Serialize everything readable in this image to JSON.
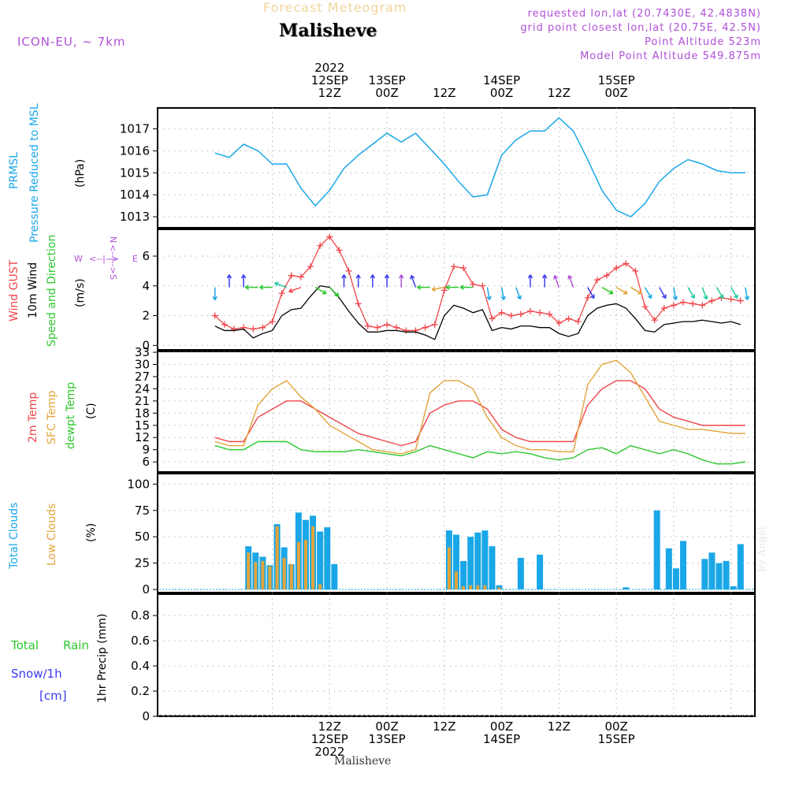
{
  "header": {
    "subtitle": "Forecast Meteogram",
    "title": "Malisheve",
    "model": "ICON-EU, ~ 7km",
    "requested": "requested lon,lat (20.7430E, 42.4838N)",
    "gridpoint": "grid point closest lon,lat (20.75E, 42.5N)",
    "point_alt": "Point Altitude 523m",
    "model_alt": "Model Point Altitude 549.875m"
  },
  "top_time_labels": [
    {
      "l1": "2022",
      "l2": "12SEP",
      "l3": "12Z"
    },
    {
      "l1": "",
      "l2": "13SEP",
      "l3": "00Z"
    },
    {
      "l1": "",
      "l2": "",
      "l3": "12Z"
    },
    {
      "l1": "",
      "l2": "14SEP",
      "l3": "00Z"
    },
    {
      "l1": "",
      "l2": "",
      "l3": "12Z"
    },
    {
      "l1": "",
      "l2": "15SEP",
      "l3": "00Z"
    }
  ],
  "bottom_time_labels": [
    {
      "l1": "12Z",
      "l2": "12SEP",
      "l3": "2022"
    },
    {
      "l1": "00Z",
      "l2": "13SEP",
      "l3": ""
    },
    {
      "l1": "12Z",
      "l2": "",
      "l3": ""
    },
    {
      "l1": "00Z",
      "l2": "14SEP",
      "l3": ""
    },
    {
      "l1": "12Z",
      "l2": "",
      "l3": ""
    },
    {
      "l1": "00Z",
      "l2": "15SEP",
      "l3": ""
    }
  ],
  "footer": "Malisheve",
  "signature": "by Angel",
  "colors": {
    "pressure": "#1aa7e8",
    "gust": "#f0454a",
    "wind": "#000000",
    "temp2m": "#f0454a",
    "sfc": "#e2a43a",
    "dewpt": "#2ec82e",
    "total_clouds": "#1aa7e8",
    "low_clouds": "#e2a43a",
    "rain": "#2ec82e",
    "snow": "#3b3bf0",
    "purple": "#b04fd8"
  },
  "chart_data": [
    {
      "type": "line",
      "panel": "pressure",
      "label_main": "PRMSL",
      "label_sub": "Pressure Reduced to MSL",
      "ylabel": "(hPa)",
      "yticks": [
        1013,
        1014,
        1015,
        1016,
        1017
      ],
      "ylim": [
        1012.5,
        1017.95
      ],
      "x_hours": [
        0,
        3,
        6,
        9,
        12,
        15,
        18,
        21,
        24,
        27,
        30,
        33,
        36,
        39,
        42,
        45,
        48,
        51,
        54,
        57,
        60,
        63,
        66,
        69,
        72,
        75
      ],
      "series": [
        {
          "values": [
            1015.9,
            1015.7,
            1016.3,
            1016.0,
            1015.4,
            1015.4,
            1014.3,
            1013.5,
            1014.2,
            1015.2,
            1015.8,
            1016.3,
            1016.8,
            1016.4,
            1016.8,
            1016.1,
            1015.4,
            1014.6,
            1013.9,
            1014.0,
            1015.8,
            1016.5,
            1016.9,
            1016.9,
            1017.5,
            1016.9
          ]
        }
      ],
      "x_hours_2": [
        75,
        78,
        81,
        84,
        87,
        90,
        93,
        96,
        99,
        102,
        105,
        108,
        111
      ],
      "series_2": [
        {
          "values": [
            1016.9,
            1015.6,
            1014.2,
            1013.3,
            1013.0,
            1013.6,
            1014.6,
            1015.2,
            1015.6,
            1015.4,
            1015.1,
            1015.0,
            1015.0
          ]
        }
      ]
    },
    {
      "type": "line",
      "panel": "wind",
      "label_gust": "Wind GUST",
      "label_wind": "10m Wind",
      "label_dir": "Speed and Direction",
      "ylabel": "(m/s)",
      "compass": {
        "w": "W",
        "e": "E",
        "n": "N",
        "s": "S"
      },
      "yticks": [
        0,
        2,
        4,
        6
      ],
      "ylim": [
        -0.3,
        7.8
      ],
      "x_hours": [
        0,
        2,
        4,
        6,
        8,
        10,
        12,
        14,
        16,
        18,
        20,
        22,
        24,
        26,
        28,
        30,
        32,
        34,
        36,
        38,
        40,
        42,
        44,
        46,
        48,
        50,
        52,
        54,
        56,
        58,
        60,
        62,
        64,
        66,
        68,
        70,
        72,
        74,
        76,
        78,
        80,
        82,
        84,
        86,
        88,
        90,
        92,
        94,
        96,
        98,
        100,
        102,
        104,
        106,
        108,
        110
      ],
      "series": [
        {
          "name": "Wind GUST",
          "values": [
            2.0,
            1.4,
            1.1,
            1.2,
            1.1,
            1.2,
            1.6,
            3.5,
            4.7,
            4.6,
            5.3,
            6.7,
            7.3,
            6.4,
            5.0,
            2.8,
            1.3,
            1.2,
            1.4,
            1.2,
            1.0,
            1.0,
            1.2,
            1.4,
            3.7,
            5.3,
            5.2,
            4.1,
            4.0,
            1.8,
            2.2,
            2.0,
            2.1,
            2.3,
            2.2,
            2.1,
            1.5,
            1.8,
            1.6,
            3.2,
            4.4,
            4.7,
            5.2,
            5.5,
            5.0,
            2.6,
            1.7,
            2.5,
            2.7,
            2.9,
            2.8,
            2.7,
            3.0,
            3.2,
            3.1,
            3.0
          ]
        },
        {
          "name": "10m Wind",
          "values": [
            1.3,
            1.0,
            1.0,
            1.1,
            0.5,
            0.8,
            1.0,
            2.0,
            2.4,
            2.5,
            3.3,
            4.0,
            3.9,
            3.2,
            2.3,
            1.5,
            0.9,
            0.9,
            1.0,
            1.0,
            0.9,
            0.9,
            0.7,
            0.4,
            2.0,
            2.7,
            2.5,
            2.2,
            2.4,
            1.0,
            1.2,
            1.1,
            1.3,
            1.3,
            1.2,
            1.2,
            0.8,
            0.6,
            0.8,
            2.0,
            2.5,
            2.7,
            2.8,
            2.5,
            1.8,
            1.0,
            0.9,
            1.4,
            1.5,
            1.6,
            1.6,
            1.7,
            1.6,
            1.5,
            1.6,
            1.4
          ]
        }
      ],
      "arrow_x_hours": [
        0,
        3,
        6,
        9,
        12,
        15,
        18,
        21,
        24,
        27,
        30,
        33,
        36,
        39,
        42,
        45,
        48,
        51,
        54,
        57,
        60,
        63,
        66,
        69,
        72,
        75,
        78,
        81,
        84,
        87,
        90,
        93,
        96,
        99,
        102,
        105,
        108,
        111
      ],
      "arrow_colors": [
        "#1aa7e8",
        "#3b3bf0",
        "#3b3bf0",
        "#2ec82e",
        "#2ec82e",
        "#1fc8a0",
        "#f0454a",
        "#2ec82e",
        "#2ec82e",
        "#3b3bf0",
        "#3b3bf0",
        "#3b3bf0",
        "#3b3bf0",
        "#b04fd8",
        "#3b3bf0",
        "#2ec82e",
        "#e2a43a",
        "#2ec82e",
        "#2ec82e",
        "#1aa7e8",
        "#1aa7e8",
        "#1aa7e8",
        "#3b3bf0",
        "#3b3bf0",
        "#b04fd8",
        "#b04fd8",
        "#3b3bf0",
        "#2ec82e",
        "#e2a43a",
        "#e2a43a",
        "#1aa7e8",
        "#3b3bf0",
        "#1aa7e8",
        "#1fc8a0",
        "#1fc8a0",
        "#1fc8a0",
        "#1fc8a0",
        "#1aa7e8"
      ],
      "arrow_dirs_deg": [
        90,
        270,
        270,
        180,
        180,
        200,
        160,
        30,
        45,
        270,
        270,
        270,
        270,
        270,
        250,
        180,
        170,
        180,
        180,
        80,
        80,
        70,
        270,
        270,
        250,
        250,
        60,
        30,
        30,
        30,
        60,
        60,
        80,
        60,
        70,
        60,
        60,
        80
      ]
    },
    {
      "type": "line",
      "panel": "temperature",
      "label_t2m": "2m Temp",
      "label_sfc": "SFC Temp",
      "label_dew": "dewpt Temp",
      "ylabel": "(C)",
      "yticks": [
        6,
        9,
        12,
        15,
        18,
        21,
        24,
        27,
        30,
        33
      ],
      "ylim": [
        3.5,
        33.2
      ],
      "x_hours": [
        0,
        3,
        6,
        9,
        12,
        15,
        18,
        21,
        24,
        27,
        30,
        33,
        36,
        39,
        42,
        45,
        48,
        51,
        54,
        57,
        60,
        63,
        66,
        69,
        72,
        75,
        78,
        81,
        84,
        87,
        90,
        93,
        96,
        99,
        102,
        105,
        108,
        111
      ],
      "series": [
        {
          "name": "2m Temp",
          "values": [
            12,
            11,
            11,
            17,
            19,
            21,
            21,
            19,
            17,
            15,
            13,
            12,
            11,
            10,
            11,
            18,
            20,
            21,
            21,
            19,
            14,
            12,
            11,
            11,
            11,
            11,
            20,
            24,
            26,
            26,
            24,
            19,
            17,
            16,
            15,
            15,
            15,
            15
          ]
        },
        {
          "name": "SFC Temp",
          "values": [
            11,
            10,
            10,
            20,
            24,
            26,
            22,
            19,
            15,
            13,
            11,
            9,
            8.5,
            8,
            9,
            23,
            26,
            26,
            24,
            17,
            12,
            10,
            9,
            9,
            8.5,
            8.5,
            25,
            30,
            31,
            28,
            22,
            16,
            15,
            14,
            14,
            13.5,
            13,
            13
          ]
        },
        {
          "name": "dewpt Temp",
          "values": [
            10,
            9,
            9,
            11,
            11,
            11,
            9,
            8.5,
            8.5,
            8.5,
            9,
            8.5,
            8,
            7.5,
            8.5,
            10,
            9,
            8,
            7,
            8.5,
            8,
            8.5,
            8,
            7,
            6.5,
            7,
            9,
            9.5,
            8,
            10,
            9,
            8,
            9,
            8,
            6.5,
            5.5,
            5.5,
            6
          ]
        }
      ]
    },
    {
      "type": "bar",
      "panel": "clouds",
      "label_total": "Total Clouds",
      "label_low": "Low Clouds",
      "ylabel": "(%)",
      "yticks": [
        0,
        25,
        50,
        75,
        100
      ],
      "ylim": [
        -3,
        110
      ],
      "x_hours": [
        7,
        8.5,
        10,
        11.5,
        13,
        14.5,
        16,
        17.5,
        19,
        20.5,
        22,
        23.5,
        25,
        49,
        50.5,
        52,
        53.5,
        55,
        56.5,
        58,
        59.5,
        61,
        64,
        68,
        86,
        92.5,
        95,
        96.5,
        98,
        101,
        102.5,
        104,
        105.5,
        107,
        108.5,
        110
      ],
      "series": [
        {
          "name": "Total Clouds",
          "values": [
            41,
            35,
            31,
            23,
            62,
            40,
            24,
            73,
            66,
            70,
            55,
            59,
            24,
            56,
            52,
            27,
            50,
            54,
            56,
            41,
            4,
            0,
            30,
            33,
            2,
            75,
            39,
            20,
            46,
            0,
            29,
            35,
            25,
            27,
            3,
            43
          ]
        },
        {
          "name": "Low Clouds",
          "values": [
            35,
            26,
            27,
            22,
            60,
            30,
            24,
            45,
            47,
            60,
            5,
            0,
            0,
            40,
            17,
            3,
            4,
            4,
            4,
            0,
            2,
            0,
            0,
            0,
            0,
            0,
            0,
            0,
            0,
            0,
            0,
            0,
            0,
            0,
            0,
            0
          ]
        }
      ]
    },
    {
      "type": "bar",
      "panel": "precip",
      "label_rain_a": "Total",
      "label_rain_b": "Rain",
      "label_snow": "Snow/1h",
      "label_cm": "[cm]",
      "ylabel": "1hr Precip (mm)",
      "yticks": [
        0,
        0.2,
        0.4,
        0.6,
        0.8
      ],
      "ylim": [
        0,
        0.97
      ],
      "series": [
        {
          "name": "Total Rain",
          "values": []
        }
      ]
    }
  ]
}
